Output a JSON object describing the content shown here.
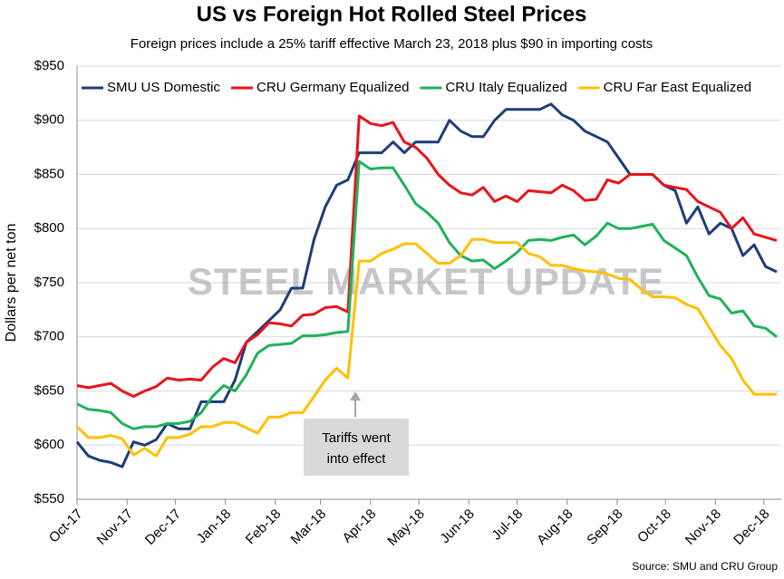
{
  "chart_data": {
    "type": "line",
    "title": "US vs Foreign Hot Rolled Steel Prices",
    "subtitle": "Foreign prices include a 25% tariff effective March 23, 2018 plus $90 in importing costs",
    "y_label": "Dollars per net ton",
    "source": "Source: SMU and CRU Group",
    "watermark": "STEEL MARKET UPDATE",
    "annotation": [
      "Tariffs went",
      "into effect"
    ],
    "grid": true,
    "legend": "top",
    "x": [
      0,
      1,
      2,
      3,
      4,
      5,
      6,
      7,
      8,
      9,
      10,
      11,
      12,
      13,
      14,
      15,
      16,
      17,
      18,
      19,
      20,
      21,
      22,
      23,
      24,
      25,
      26,
      27,
      28,
      29,
      30,
      31,
      32,
      33,
      34,
      35,
      36,
      37,
      38,
      39,
      40,
      41,
      42,
      43,
      44,
      45,
      46,
      47,
      48,
      49,
      50,
      51,
      52,
      53,
      54,
      55,
      56,
      57,
      58,
      59,
      60,
      61,
      62
    ],
    "xlim": [
      0,
      62.4
    ],
    "xticks": [
      {
        "value": 0,
        "label": "Oct-17"
      },
      {
        "value": 4.43,
        "label": "Nov-17"
      },
      {
        "value": 8.71,
        "label": "Dec-17"
      },
      {
        "value": 13.14,
        "label": "Jan-18"
      },
      {
        "value": 17.57,
        "label": "Feb-18"
      },
      {
        "value": 21.57,
        "label": "Mar-18"
      },
      {
        "value": 26,
        "label": "Apr-18"
      },
      {
        "value": 30.29,
        "label": "May-18"
      },
      {
        "value": 34.71,
        "label": "Jun-18"
      },
      {
        "value": 39,
        "label": "Jul-18"
      },
      {
        "value": 43.43,
        "label": "Aug-18"
      },
      {
        "value": 47.86,
        "label": "Sep-18"
      },
      {
        "value": 52.14,
        "label": "Oct-18"
      },
      {
        "value": 56.57,
        "label": "Nov-18"
      },
      {
        "value": 60.86,
        "label": "Dec-18"
      }
    ],
    "ylim": [
      550,
      950
    ],
    "yticks": [
      {
        "value": 550,
        "label": "$550"
      },
      {
        "value": 600,
        "label": "$600"
      },
      {
        "value": 650,
        "label": "$650"
      },
      {
        "value": 700,
        "label": "$700"
      },
      {
        "value": 750,
        "label": "$750"
      },
      {
        "value": 800,
        "label": "$800"
      },
      {
        "value": 850,
        "label": "$850"
      },
      {
        "value": 900,
        "label": "$900"
      },
      {
        "value": 950,
        "label": "$950"
      }
    ],
    "series": [
      {
        "name": "SMU US Domestic",
        "color": "#1f3c7a",
        "values": [
          603,
          590,
          586,
          584,
          580,
          603,
          600,
          605,
          620,
          615,
          615,
          640,
          640,
          640,
          660,
          695,
          705,
          715,
          725,
          745,
          745,
          790,
          820,
          840,
          845,
          870,
          870,
          870,
          880,
          870,
          880,
          880,
          880,
          900,
          890,
          885,
          885,
          900,
          910,
          910,
          910,
          910,
          915,
          905,
          900,
          890,
          885,
          880,
          865,
          850,
          850,
          850,
          840,
          835,
          805,
          820,
          795,
          805,
          800,
          775,
          785,
          765,
          760
        ]
      },
      {
        "name": "CRU Germany Equalized",
        "color": "#e8141b",
        "values": [
          655,
          653,
          655,
          657,
          650,
          645,
          650,
          654,
          662,
          660,
          661,
          660,
          672,
          680,
          676,
          695,
          702,
          713,
          712,
          710,
          720,
          721,
          727,
          728,
          723,
          904,
          897,
          895,
          898,
          880,
          875,
          865,
          850,
          840,
          833,
          831,
          838,
          825,
          830,
          825,
          835,
          834,
          833,
          840,
          835,
          826,
          827,
          845,
          842,
          850,
          850,
          850,
          840,
          838,
          836,
          825,
          820,
          815,
          800,
          810,
          795,
          792,
          789
        ]
      },
      {
        "name": "CRU Italy Equalized",
        "color": "#1fb25a",
        "values": [
          638,
          633,
          632,
          630,
          620,
          615,
          617,
          617,
          620,
          620,
          622,
          630,
          645,
          655,
          650,
          665,
          685,
          692,
          693,
          694,
          701,
          701,
          702,
          704,
          705,
          862,
          855,
          856,
          856,
          840,
          823,
          815,
          805,
          787,
          775,
          770,
          771,
          763,
          770,
          778,
          789,
          790,
          789,
          792,
          794,
          785,
          793,
          805,
          800,
          800,
          802,
          804,
          789,
          782,
          775,
          755,
          738,
          735,
          722,
          724,
          710,
          708,
          700
        ]
      },
      {
        "name": "CRU Far East Equalized",
        "color": "#ffc000",
        "values": [
          617,
          607,
          607,
          609,
          606,
          591,
          597,
          590,
          607,
          607,
          610,
          617,
          617,
          621,
          621,
          616,
          611,
          626,
          626,
          630,
          630,
          645,
          660,
          671,
          662,
          770,
          770,
          777,
          781,
          786,
          786,
          777,
          768,
          768,
          775,
          790,
          790,
          787,
          787,
          787,
          777,
          774,
          766,
          766,
          763,
          761,
          760,
          758,
          754,
          753,
          744,
          737,
          737,
          736,
          730,
          726,
          709,
          692,
          680,
          660,
          647,
          647,
          647
        ]
      }
    ]
  }
}
